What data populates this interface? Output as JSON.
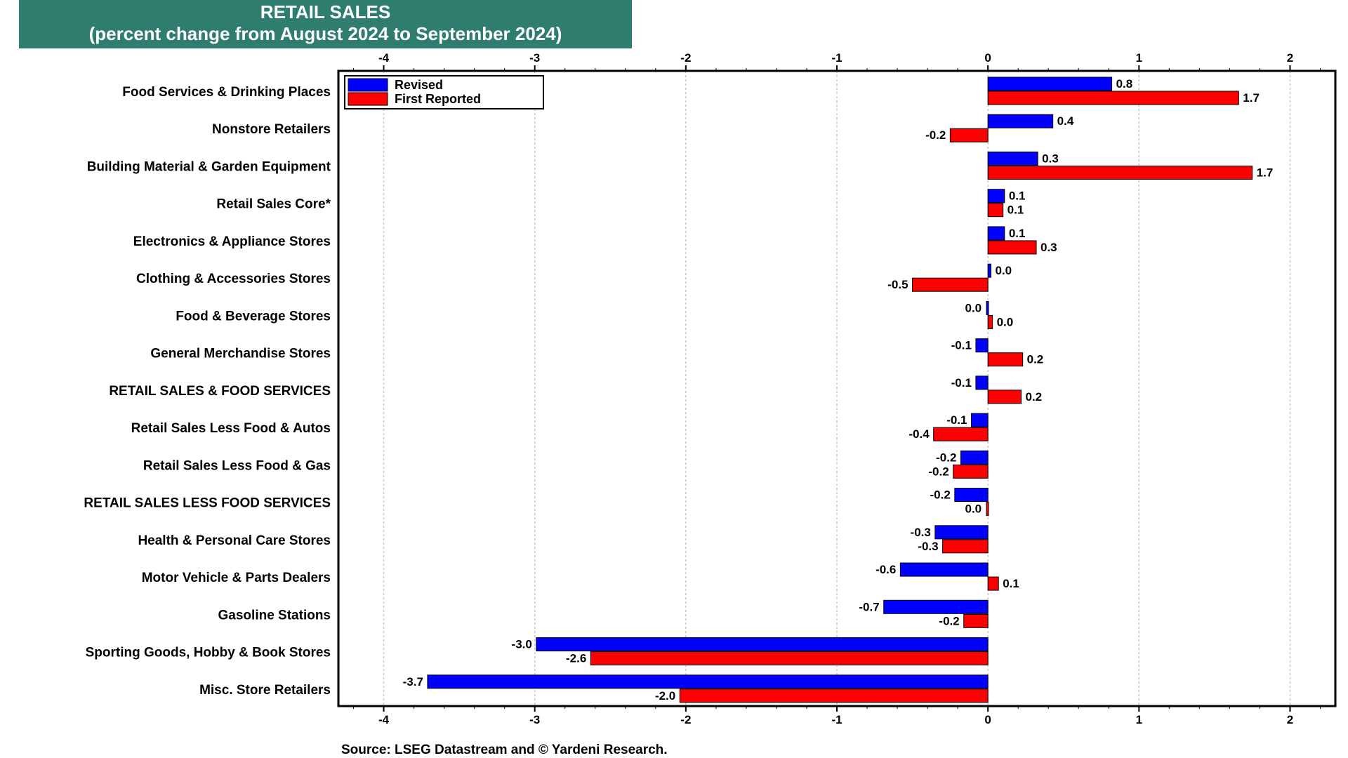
{
  "title": "RETAIL SALES",
  "subtitle": "(percent change from August 2024 to September 2024)",
  "source": "Source: LSEG Datastream and © Yardeni Research.",
  "colors": {
    "revised": "#0000ff",
    "first_reported": "#ff0000",
    "title_bg": "#2e7d6e"
  },
  "chart_data": {
    "type": "bar",
    "orientation": "horizontal",
    "title": "RETAIL SALES",
    "subtitle": "(percent change from August 2024 to September 2024)",
    "xlim": [
      -4.3,
      2.3
    ],
    "xticks": [
      -4,
      -3,
      -2,
      -1,
      0,
      1,
      2
    ],
    "xtick_labels": [
      "-4",
      "-3",
      "-2",
      "-1",
      "0",
      "1",
      "2"
    ],
    "grid": true,
    "legend_position": "top-left",
    "categories": [
      "Food Services & Drinking Places",
      "Nonstore Retailers",
      "Building Material & Garden Equipment",
      "Retail Sales Core*",
      "Electronics & Appliance Stores",
      "Clothing & Accessories Stores",
      "Food & Beverage Stores",
      "General Merchandise Stores",
      "RETAIL SALES & FOOD SERVICES",
      "Retail Sales Less Food & Autos",
      "Retail Sales Less Food & Gas",
      "RETAIL SALES LESS FOOD SERVICES",
      "Health & Personal Care Stores",
      "Motor Vehicle & Parts Dealers",
      "Gasoline Stations",
      "Sporting Goods, Hobby & Book Stores",
      "Misc. Store Retailers"
    ],
    "series": [
      {
        "name": "Revised",
        "color": "#0000ff",
        "values": [
          0.82,
          0.43,
          0.33,
          0.11,
          0.11,
          0.02,
          -0.01,
          -0.08,
          -0.08,
          -0.11,
          -0.18,
          -0.22,
          -0.35,
          -0.58,
          -0.69,
          -2.99,
          -3.71
        ],
        "labels": [
          "0.8",
          "0.4",
          "0.3",
          "0.1",
          "0.1",
          "0.0",
          "0.0",
          "-0.1",
          "-0.1",
          "-0.1",
          "-0.2",
          "-0.2",
          "-0.3",
          "-0.6",
          "-0.7",
          "-3.0",
          "-3.7"
        ]
      },
      {
        "name": "First Reported",
        "color": "#ff0000",
        "values": [
          1.66,
          -0.25,
          1.75,
          0.1,
          0.32,
          -0.5,
          0.03,
          0.23,
          0.22,
          -0.36,
          -0.23,
          -0.01,
          -0.3,
          0.07,
          -0.16,
          -2.63,
          -2.04
        ],
        "labels": [
          "1.7",
          "-0.2",
          "1.7",
          "0.1",
          "0.3",
          "-0.5",
          "0.0",
          "0.2",
          "0.2",
          "-0.4",
          "-0.2",
          "0.0",
          "-0.3",
          "0.1",
          "-0.2",
          "-2.6",
          "-2.0"
        ]
      }
    ]
  }
}
